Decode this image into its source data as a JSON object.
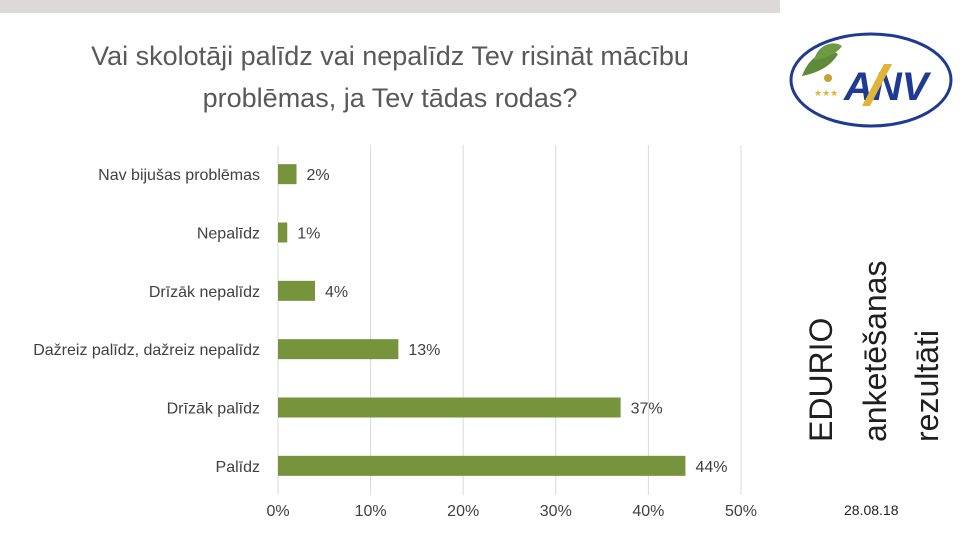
{
  "chart_data": {
    "type": "bar",
    "orientation": "horizontal",
    "title_line1": "Vai skolotāji palīdz vai nepalīdz Tev risināt mācību",
    "title_line2": "problēmas, ja Tev tādas rodas?",
    "categories": [
      "Nav bijušas problēmas",
      "Nepalīdz",
      "Drīzāk nepalīdz",
      "Dažreiz palīdz, dažreiz nepalīdz",
      "Drīzāk palīdz",
      "Palīdz"
    ],
    "values": [
      2,
      1,
      4,
      13,
      37,
      44
    ],
    "value_labels": [
      "2%",
      "1%",
      "4%",
      "13%",
      "37%",
      "44%"
    ],
    "xlim": [
      0,
      50
    ],
    "xticks": [
      "0%",
      "10%",
      "20%",
      "30%",
      "40%",
      "50%"
    ],
    "grid": true,
    "legend": "none",
    "bar_color": "#77933c"
  },
  "sidebar": {
    "title_line1": "EDURIO",
    "title_line2": "anketēšanas",
    "title_line3": "rezultāti",
    "logo_text": "ANV",
    "date": "28.08.18"
  },
  "colors": {
    "logo_blue": "#1f3a93",
    "logo_gold": "#e0b437",
    "leaf_green": "#5e8a3a"
  }
}
